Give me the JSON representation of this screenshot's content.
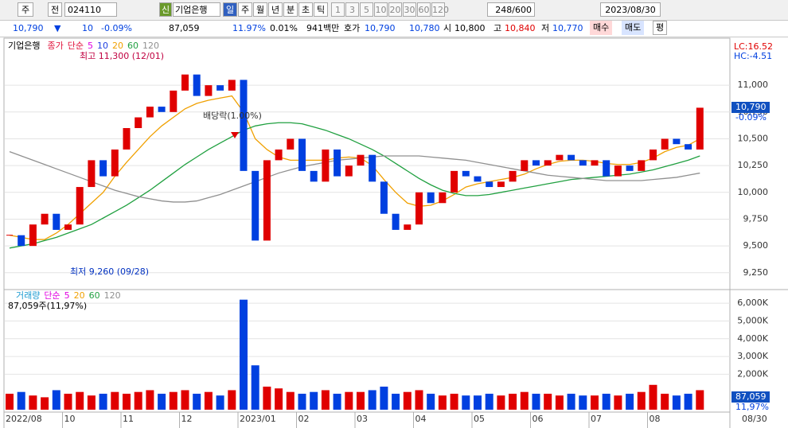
{
  "toolbar": {
    "market": "주",
    "type": "전",
    "code": "024110",
    "name": "기업은행",
    "credit": "신",
    "periods": [
      "일",
      "주",
      "월",
      "년",
      "분",
      "초",
      "틱"
    ],
    "intervals": [
      "1",
      "3",
      "5",
      "10",
      "20",
      "30",
      "60",
      "120"
    ],
    "count": "248/600",
    "date": "2023/08/30"
  },
  "quote": {
    "price": "10,790",
    "arrow": "▼",
    "change": "10",
    "rate": "-0.09%",
    "volume": "87,059",
    "turnover": "11.97%",
    "ratio": "0.01%",
    "amount": "941백만",
    "ask_label": "호가",
    "ask": "10,790",
    "bid": "10,780",
    "open_label": "시",
    "open": "10,800",
    "high_label": "고",
    "high": "10,840",
    "low_label": "저",
    "low": "10,770",
    "buy": "매수",
    "sell": "매도",
    "avg": "평"
  },
  "chart_data": [
    {
      "type": "candlestick",
      "title": "기업은행",
      "ma_method": "단순",
      "series": [
        {
          "name": "종가",
          "color": "#e0103a",
          "values": [
            9600,
            9500,
            9700,
            9800,
            9650,
            9700,
            10050,
            10300,
            10150,
            10400,
            10600,
            10700,
            10800,
            10750,
            10950,
            11100,
            10900,
            11000,
            10950,
            11050,
            10200,
            9550,
            10300,
            10400,
            10500,
            10200,
            10100,
            10400,
            10150,
            10250,
            10350,
            10100,
            9800,
            9650,
            9700,
            10000,
            9900,
            10000,
            10200,
            10150,
            10100,
            10050,
            10100,
            10200,
            10300,
            10250,
            10300,
            10350,
            10300,
            10250,
            10300,
            10150,
            10250,
            10200,
            10300,
            10400,
            10500,
            10450,
            10400,
            10790
          ]
        },
        {
          "name": "20",
          "color": "#f0a000",
          "values": [
            9600,
            9580,
            9560,
            9560,
            9620,
            9700,
            9800,
            9900,
            10000,
            10150,
            10280,
            10400,
            10520,
            10620,
            10700,
            10780,
            10830,
            10860,
            10880,
            10900,
            10750,
            10500,
            10400,
            10330,
            10300,
            10300,
            10300,
            10300,
            10320,
            10330,
            10320,
            10250,
            10120,
            10000,
            9900,
            9870,
            9880,
            9920,
            9980,
            10050,
            10080,
            10100,
            10120,
            10140,
            10170,
            10220,
            10260,
            10290,
            10300,
            10300,
            10290,
            10270,
            10260,
            10260,
            10280,
            10320,
            10380,
            10420,
            10440,
            10500
          ]
        },
        {
          "name": "60",
          "color": "#20a040",
          "values": [
            9480,
            9500,
            9520,
            9550,
            9580,
            9620,
            9660,
            9700,
            9760,
            9820,
            9880,
            9950,
            10020,
            10100,
            10180,
            10260,
            10330,
            10400,
            10460,
            10520,
            10580,
            10620,
            10640,
            10650,
            10650,
            10640,
            10610,
            10580,
            10540,
            10500,
            10450,
            10400,
            10340,
            10270,
            10200,
            10130,
            10070,
            10020,
            9990,
            9970,
            9970,
            9980,
            10000,
            10020,
            10040,
            10060,
            10080,
            10100,
            10120,
            10130,
            10140,
            10150,
            10160,
            10170,
            10190,
            10210,
            10240,
            10270,
            10300,
            10340
          ]
        },
        {
          "name": "120",
          "color": "#909090",
          "values": [
            10380,
            10340,
            10300,
            10260,
            10220,
            10180,
            10140,
            10100,
            10060,
            10020,
            9990,
            9960,
            9940,
            9920,
            9910,
            9910,
            9920,
            9950,
            9980,
            10020,
            10060,
            10100,
            10140,
            10180,
            10210,
            10240,
            10260,
            10280,
            10300,
            10310,
            10320,
            10330,
            10340,
            10340,
            10340,
            10340,
            10330,
            10320,
            10310,
            10300,
            10280,
            10260,
            10240,
            10220,
            10200,
            10180,
            10160,
            10150,
            10140,
            10130,
            10120,
            10110,
            10110,
            10110,
            10110,
            10120,
            10130,
            10140,
            10160,
            10180
          ]
        }
      ],
      "legend_extra": [
        {
          "name": "5",
          "color": "#e000e0"
        },
        {
          "name": "10",
          "color": "#2040e0"
        }
      ],
      "ylim": [
        9100,
        11350
      ],
      "yticks": [
        {
          "value": 9250,
          "label": "9,250"
        },
        {
          "value": 9500,
          "label": "9,500"
        },
        {
          "value": 9750,
          "label": "9,750"
        },
        {
          "value": 10000,
          "label": "10,000"
        },
        {
          "value": 10250,
          "label": "10,250"
        },
        {
          "value": 10500,
          "label": "10,500"
        },
        {
          "value": 10750,
          "label": "10,750"
        },
        {
          "value": 11000,
          "label": "11,000"
        }
      ],
      "annotations": {
        "high": "최고 11,300 (12/01)",
        "low": "최저 9,260 (09/28)",
        "dividend": "배당락(1.00%)",
        "lc": "LC:16.52",
        "hc": "HC:-4.51",
        "last": "10,790",
        "last_rate": "-0.09%"
      }
    },
    {
      "type": "bar",
      "title": "거래량",
      "ma_method": "단순",
      "up_color": "#e00000",
      "down_color": "#0040e0",
      "legend_extra": [
        {
          "name": "5",
          "color": "#e000e0"
        },
        {
          "name": "20",
          "color": "#f0a000"
        },
        {
          "name": "60",
          "color": "#20a040"
        },
        {
          "name": "120",
          "color": "#909090"
        }
      ],
      "categories": [
        "2022/08",
        null,
        null,
        null,
        null,
        "10",
        null,
        null,
        null,
        null,
        "11",
        null,
        null,
        null,
        null,
        "12",
        null,
        null,
        null,
        null,
        "2023/01",
        null,
        null,
        null,
        null,
        "02",
        null,
        null,
        null,
        null,
        "03",
        null,
        null,
        null,
        null,
        "04",
        null,
        null,
        null,
        null,
        "05",
        null,
        null,
        null,
        null,
        "06",
        null,
        null,
        null,
        null,
        "07",
        null,
        null,
        null,
        null,
        "08",
        null,
        null,
        null,
        null
      ],
      "values": [
        900,
        1000,
        800,
        700,
        1100,
        900,
        1000,
        800,
        900,
        1000,
        900,
        1000,
        1100,
        900,
        1000,
        1100,
        900,
        1000,
        800,
        1100,
        6200,
        2500,
        1300,
        1200,
        1000,
        900,
        1000,
        1100,
        900,
        1000,
        1000,
        1100,
        1300,
        900,
        1000,
        1100,
        900,
        800,
        900,
        800,
        800,
        900,
        800,
        900,
        1000,
        900,
        900,
        800,
        900,
        800,
        800,
        900,
        800,
        900,
        1000,
        1400,
        900,
        800,
        900,
        1100
      ],
      "ylim": [
        0,
        6500
      ],
      "yticks": [
        {
          "value": 2000,
          "label": "2,000K"
        },
        {
          "value": 3000,
          "label": "3,000K"
        },
        {
          "value": 4000,
          "label": "4,000K"
        },
        {
          "value": 5000,
          "label": "5,000K"
        },
        {
          "value": 6000,
          "label": "6,000K"
        }
      ],
      "info": "87,059주(11,97%)",
      "last": "87,059",
      "last_rate": "11,97%",
      "end_label": "08/30"
    }
  ]
}
